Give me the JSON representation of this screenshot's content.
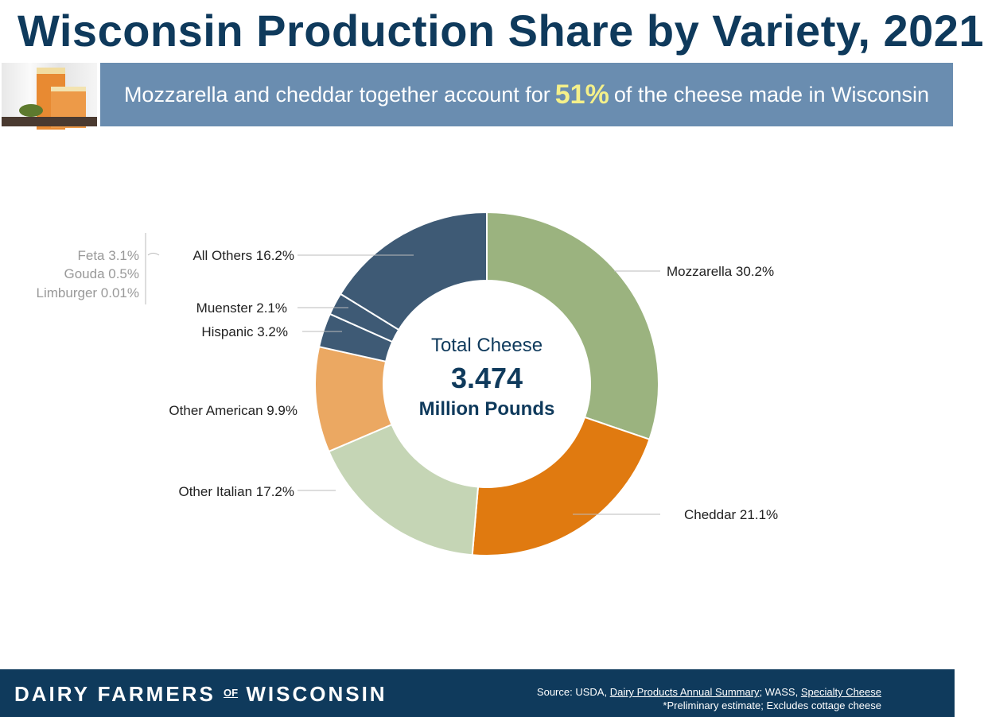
{
  "title": "Wisconsin Production Share by Variety, 2021",
  "banner": {
    "before": "Mozzarella and cheddar together account for",
    "highlight": "51%",
    "after": "of the cheese made in Wisconsin",
    "highlight_color": "#f4f08a"
  },
  "chart_data": {
    "type": "pie",
    "donut": true,
    "center_text": {
      "line1": "Total Cheese",
      "line2": "3.474",
      "line3": "Million Pounds"
    },
    "slices": [
      {
        "label": "Mozzarella 30.2%",
        "value": 30.2,
        "color": "#9bb37f"
      },
      {
        "label": "Cheddar 21.1%",
        "value": 21.1,
        "color": "#e07a10"
      },
      {
        "label": "Other Italian 17.2%",
        "value": 17.2,
        "color": "#c5d5b5"
      },
      {
        "label": "Other American 9.9%",
        "value": 9.9,
        "color": "#eba862"
      },
      {
        "label": "Hispanic 3.2%",
        "value": 3.2,
        "color": "#3e5a75"
      },
      {
        "label": "Muenster 2.1%",
        "value": 2.1,
        "color": "#3e5a75"
      },
      {
        "label": "All Others 16.2%",
        "value": 16.2,
        "color": "#3e5a75"
      }
    ],
    "all_others_breakdown": [
      "Feta 3.1%",
      "Gouda 0.5%",
      "Limburger 0.01%"
    ]
  },
  "footer": {
    "logo": {
      "left": "DAIRY FARMERS",
      "of": "OF",
      "right": "WISCONSIN"
    },
    "source_prefix": "Source: USDA,",
    "source_link1": "Dairy Products Annual Summary",
    "source_mid": "; WASS,",
    "source_link2": "Specialty Cheese",
    "note": "*Preliminary estimate; Excludes cottage cheese"
  }
}
